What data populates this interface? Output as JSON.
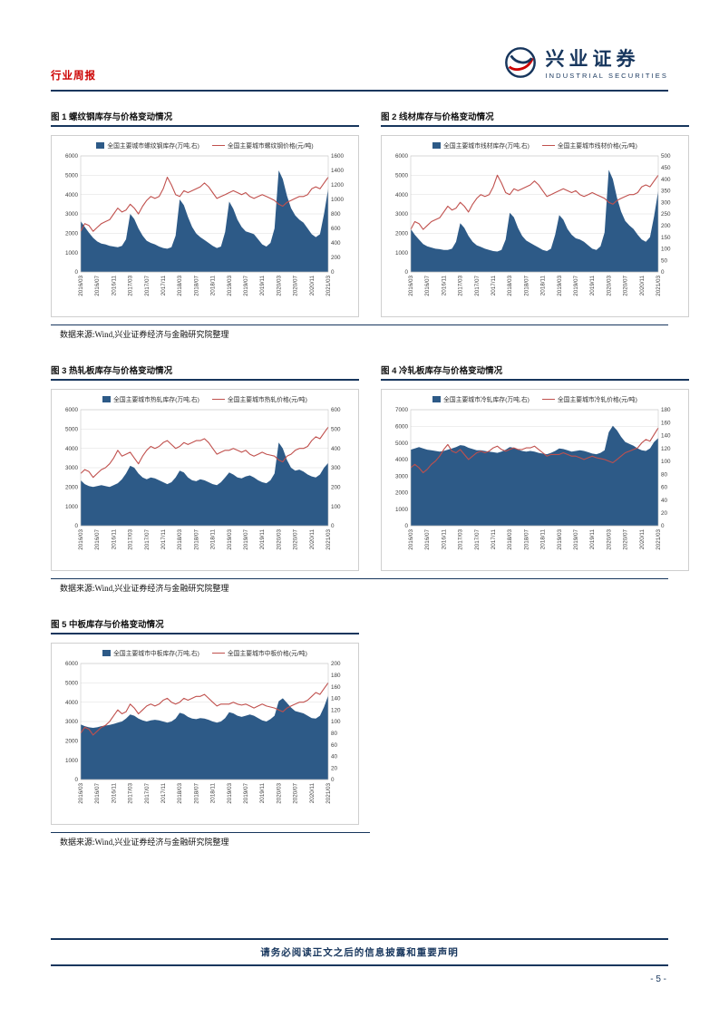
{
  "header": {
    "report_type": "行业周报",
    "brand_cn": "兴业证券",
    "brand_en": "INDUSTRIAL SECURITIES"
  },
  "source_note": "数据来源:Wind,兴业证券经济与金融研究院整理",
  "footer": {
    "disclaimer": "请务必阅读正文之后的信息披露和重要声明",
    "page_number": "- 5 -"
  },
  "colors": {
    "navy": "#17365d",
    "red_accent": "#cc0000",
    "area_blue": "#2d5a87",
    "line_red": "#c0504d",
    "grid": "#dcdcdc"
  },
  "chart_data": [
    {
      "type": "area+line",
      "title": "图 1 螺纹钢库存与价格变动情况",
      "x_labels": [
        "2016/03",
        "2016/07",
        "2016/11",
        "2017/03",
        "2017/07",
        "2017/11",
        "2018/03",
        "2018/07",
        "2018/11",
        "2019/03",
        "2019/07",
        "2019/11",
        "2020/03",
        "2020/07",
        "2020/11",
        "2021/03"
      ],
      "left_axis": {
        "min": 0,
        "max": 6000,
        "step": 1000
      },
      "right_axis": {
        "min": 0,
        "max": 1600,
        "step": 200
      },
      "series": [
        {
          "label": "全国主要城市螺纹钢库存(万吨,右)",
          "type": "area",
          "axis": "right",
          "color": "#2d5a87",
          "values": [
            700,
            620,
            540,
            470,
            420,
            390,
            380,
            360,
            350,
            340,
            360,
            450,
            800,
            730,
            600,
            500,
            430,
            400,
            380,
            350,
            330,
            320,
            340,
            500,
            1000,
            920,
            760,
            620,
            530,
            480,
            440,
            400,
            360,
            330,
            350,
            550,
            970,
            870,
            720,
            620,
            560,
            540,
            520,
            450,
            380,
            350,
            400,
            600,
            1400,
            1280,
            1050,
            880,
            780,
            720,
            680,
            600,
            520,
            480,
            520,
            800,
            1150
          ]
        },
        {
          "label": "全国主要城市螺纹钢价格(元/吨)",
          "type": "line",
          "axis": "left",
          "color": "#c0504d",
          "values": [
            2100,
            2500,
            2400,
            2100,
            2300,
            2500,
            2600,
            2700,
            3000,
            3300,
            3100,
            3200,
            3500,
            3300,
            3000,
            3400,
            3700,
            3900,
            3800,
            3900,
            4300,
            4900,
            4500,
            4000,
            3900,
            4200,
            4100,
            4200,
            4300,
            4400,
            4600,
            4400,
            4100,
            3800,
            3900,
            4000,
            4100,
            4200,
            4100,
            4000,
            4100,
            3900,
            3800,
            3900,
            4000,
            3900,
            3800,
            3700,
            3500,
            3400,
            3600,
            3700,
            3800,
            3900,
            3900,
            4000,
            4300,
            4400,
            4300,
            4600,
            4900
          ]
        }
      ]
    },
    {
      "type": "area+line",
      "title": "图 2 线材库存与价格变动情况",
      "x_labels": [
        "2016/03",
        "2016/07",
        "2016/11",
        "2017/03",
        "2017/07",
        "2017/11",
        "2018/03",
        "2018/07",
        "2018/11",
        "2019/03",
        "2019/07",
        "2019/11",
        "2020/03",
        "2020/07",
        "2020/11",
        "2021/03"
      ],
      "left_axis": {
        "min": 0,
        "max": 6000,
        "step": 1000
      },
      "right_axis": {
        "min": 0,
        "max": 500,
        "step": 50
      },
      "series": [
        {
          "label": "全国主要城市线材库存(万吨,右)",
          "type": "area",
          "axis": "right",
          "color": "#2d5a87",
          "values": [
            185,
            160,
            140,
            120,
            110,
            105,
            100,
            98,
            95,
            95,
            100,
            130,
            210,
            190,
            155,
            130,
            115,
            108,
            100,
            95,
            90,
            88,
            95,
            140,
            255,
            235,
            190,
            155,
            135,
            125,
            115,
            105,
            95,
            90,
            100,
            160,
            245,
            225,
            185,
            160,
            145,
            140,
            130,
            115,
            100,
            95,
            110,
            170,
            440,
            400,
            320,
            260,
            220,
            200,
            185,
            160,
            140,
            130,
            150,
            240,
            350
          ]
        },
        {
          "label": "全国主要城市线材价格(元/吨)",
          "type": "line",
          "axis": "left",
          "color": "#c0504d",
          "values": [
            2200,
            2600,
            2500,
            2200,
            2400,
            2600,
            2700,
            2800,
            3100,
            3400,
            3200,
            3300,
            3600,
            3400,
            3100,
            3500,
            3800,
            4000,
            3900,
            4000,
            4400,
            5000,
            4600,
            4100,
            4000,
            4300,
            4200,
            4300,
            4400,
            4500,
            4700,
            4500,
            4200,
            3900,
            4000,
            4100,
            4200,
            4300,
            4200,
            4100,
            4200,
            4000,
            3900,
            4000,
            4100,
            4000,
            3900,
            3800,
            3600,
            3500,
            3700,
            3800,
            3900,
            4000,
            4000,
            4100,
            4400,
            4500,
            4400,
            4700,
            5000
          ]
        }
      ]
    },
    {
      "type": "area+line",
      "title": "图 3 热轧板库存与价格变动情况",
      "x_labels": [
        "2016/03",
        "2016/07",
        "2016/11",
        "2017/03",
        "2017/07",
        "2017/11",
        "2018/03",
        "2018/07",
        "2018/11",
        "2019/03",
        "2019/07",
        "2019/11",
        "2020/03",
        "2020/07",
        "2020/11",
        "2021/03"
      ],
      "left_axis": {
        "min": 0,
        "max": 6000,
        "step": 1000
      },
      "right_axis": {
        "min": 0,
        "max": 600,
        "step": 100
      },
      "series": [
        {
          "label": "全国主要城市热轧库存(万吨,右)",
          "type": "area",
          "axis": "right",
          "color": "#2d5a87",
          "values": [
            235,
            215,
            205,
            200,
            205,
            210,
            205,
            200,
            210,
            220,
            240,
            270,
            310,
            300,
            270,
            250,
            240,
            250,
            245,
            235,
            225,
            215,
            225,
            250,
            285,
            275,
            250,
            235,
            230,
            240,
            235,
            225,
            215,
            210,
            225,
            250,
            275,
            265,
            250,
            245,
            255,
            260,
            250,
            235,
            225,
            220,
            235,
            270,
            430,
            400,
            340,
            300,
            285,
            290,
            280,
            265,
            255,
            250,
            265,
            300,
            325
          ]
        },
        {
          "label": "全国主要城市热轧价格(元/吨)",
          "type": "line",
          "axis": "left",
          "color": "#c0504d",
          "values": [
            2700,
            2900,
            2800,
            2500,
            2700,
            2900,
            3000,
            3200,
            3500,
            3900,
            3600,
            3700,
            3800,
            3500,
            3200,
            3600,
            3900,
            4100,
            4000,
            4100,
            4300,
            4400,
            4200,
            4000,
            4100,
            4300,
            4200,
            4300,
            4400,
            4400,
            4500,
            4300,
            4000,
            3700,
            3800,
            3900,
            3900,
            4000,
            3900,
            3800,
            3900,
            3700,
            3600,
            3700,
            3800,
            3700,
            3650,
            3600,
            3400,
            3300,
            3600,
            3700,
            3900,
            4000,
            4000,
            4100,
            4400,
            4600,
            4500,
            4800,
            5100
          ]
        }
      ]
    },
    {
      "type": "area+line",
      "title": "图 4 冷轧板库存与价格变动情况",
      "x_labels": [
        "2016/03",
        "2016/07",
        "2016/11",
        "2017/03",
        "2017/07",
        "2017/11",
        "2018/03",
        "2018/07",
        "2018/11",
        "2019/03",
        "2019/07",
        "2019/11",
        "2020/03",
        "2020/07",
        "2020/11",
        "2021/03"
      ],
      "left_axis": {
        "min": 0,
        "max": 7000,
        "step": 1000
      },
      "right_axis": {
        "min": 0,
        "max": 180,
        "step": 20
      },
      "series": [
        {
          "label": "全国主要城市冷轧库存(万吨,右)",
          "type": "area",
          "axis": "right",
          "color": "#2d5a87",
          "values": [
            118,
            120,
            122,
            120,
            118,
            117,
            116,
            115,
            116,
            118,
            120,
            122,
            125,
            124,
            121,
            119,
            117,
            117,
            116,
            115,
            114,
            113,
            115,
            118,
            122,
            121,
            118,
            116,
            115,
            116,
            115,
            113,
            112,
            111,
            113,
            116,
            120,
            119,
            117,
            115,
            116,
            117,
            116,
            114,
            112,
            111,
            113,
            117,
            145,
            155,
            148,
            138,
            130,
            127,
            124,
            120,
            117,
            116,
            120,
            130,
            136
          ]
        },
        {
          "label": "全国主要城市冷轧价格(元/吨)",
          "type": "line",
          "axis": "left",
          "color": "#c0504d",
          "values": [
            3500,
            3700,
            3500,
            3200,
            3400,
            3700,
            3900,
            4200,
            4600,
            4900,
            4500,
            4400,
            4600,
            4300,
            4000,
            4200,
            4400,
            4500,
            4400,
            4500,
            4700,
            4800,
            4600,
            4500,
            4600,
            4700,
            4600,
            4600,
            4700,
            4700,
            4800,
            4600,
            4400,
            4200,
            4300,
            4300,
            4300,
            4400,
            4300,
            4200,
            4200,
            4100,
            4000,
            4100,
            4200,
            4100,
            4050,
            4000,
            3900,
            3800,
            4000,
            4200,
            4400,
            4500,
            4600,
            4700,
            5000,
            5200,
            5100,
            5500,
            5900
          ]
        }
      ]
    },
    {
      "type": "area+line",
      "title": "图 5 中板库存与价格变动情况",
      "x_labels": [
        "2016/03",
        "2016/07",
        "2016/11",
        "2017/03",
        "2017/07",
        "2017/11",
        "2018/03",
        "2018/07",
        "2018/11",
        "2019/03",
        "2019/07",
        "2019/11",
        "2020/03",
        "2020/07",
        "2020/11",
        "2021/03"
      ],
      "left_axis": {
        "min": 0,
        "max": 6000,
        "step": 1000
      },
      "right_axis": {
        "min": 0,
        "max": 200,
        "step": 20
      },
      "series": [
        {
          "label": "全国主要城市中板库存(万吨,右)",
          "type": "area",
          "axis": "right",
          "color": "#2d5a87",
          "values": [
            95,
            92,
            90,
            89,
            90,
            92,
            93,
            94,
            96,
            98,
            100,
            105,
            112,
            110,
            105,
            102,
            100,
            102,
            103,
            102,
            100,
            98,
            100,
            105,
            115,
            113,
            108,
            105,
            104,
            106,
            105,
            103,
            100,
            98,
            100,
            106,
            116,
            114,
            110,
            108,
            110,
            112,
            110,
            106,
            102,
            100,
            104,
            110,
            135,
            140,
            132,
            124,
            118,
            116,
            114,
            110,
            106,
            105,
            110,
            125,
            145
          ]
        },
        {
          "label": "全国主要城市中板价格(元/吨)",
          "type": "line",
          "axis": "left",
          "color": "#c0504d",
          "values": [
            2400,
            2700,
            2600,
            2300,
            2500,
            2700,
            2800,
            3000,
            3300,
            3600,
            3400,
            3500,
            3900,
            3700,
            3400,
            3600,
            3800,
            3900,
            3800,
            3900,
            4100,
            4200,
            4000,
            3900,
            4000,
            4200,
            4100,
            4200,
            4300,
            4300,
            4400,
            4200,
            4000,
            3800,
            3900,
            3900,
            3900,
            4000,
            3900,
            3850,
            3900,
            3800,
            3700,
            3800,
            3900,
            3800,
            3750,
            3700,
            3600,
            3500,
            3700,
            3800,
            3900,
            4000,
            4000,
            4100,
            4300,
            4500,
            4400,
            4700,
            5000
          ]
        }
      ]
    }
  ]
}
